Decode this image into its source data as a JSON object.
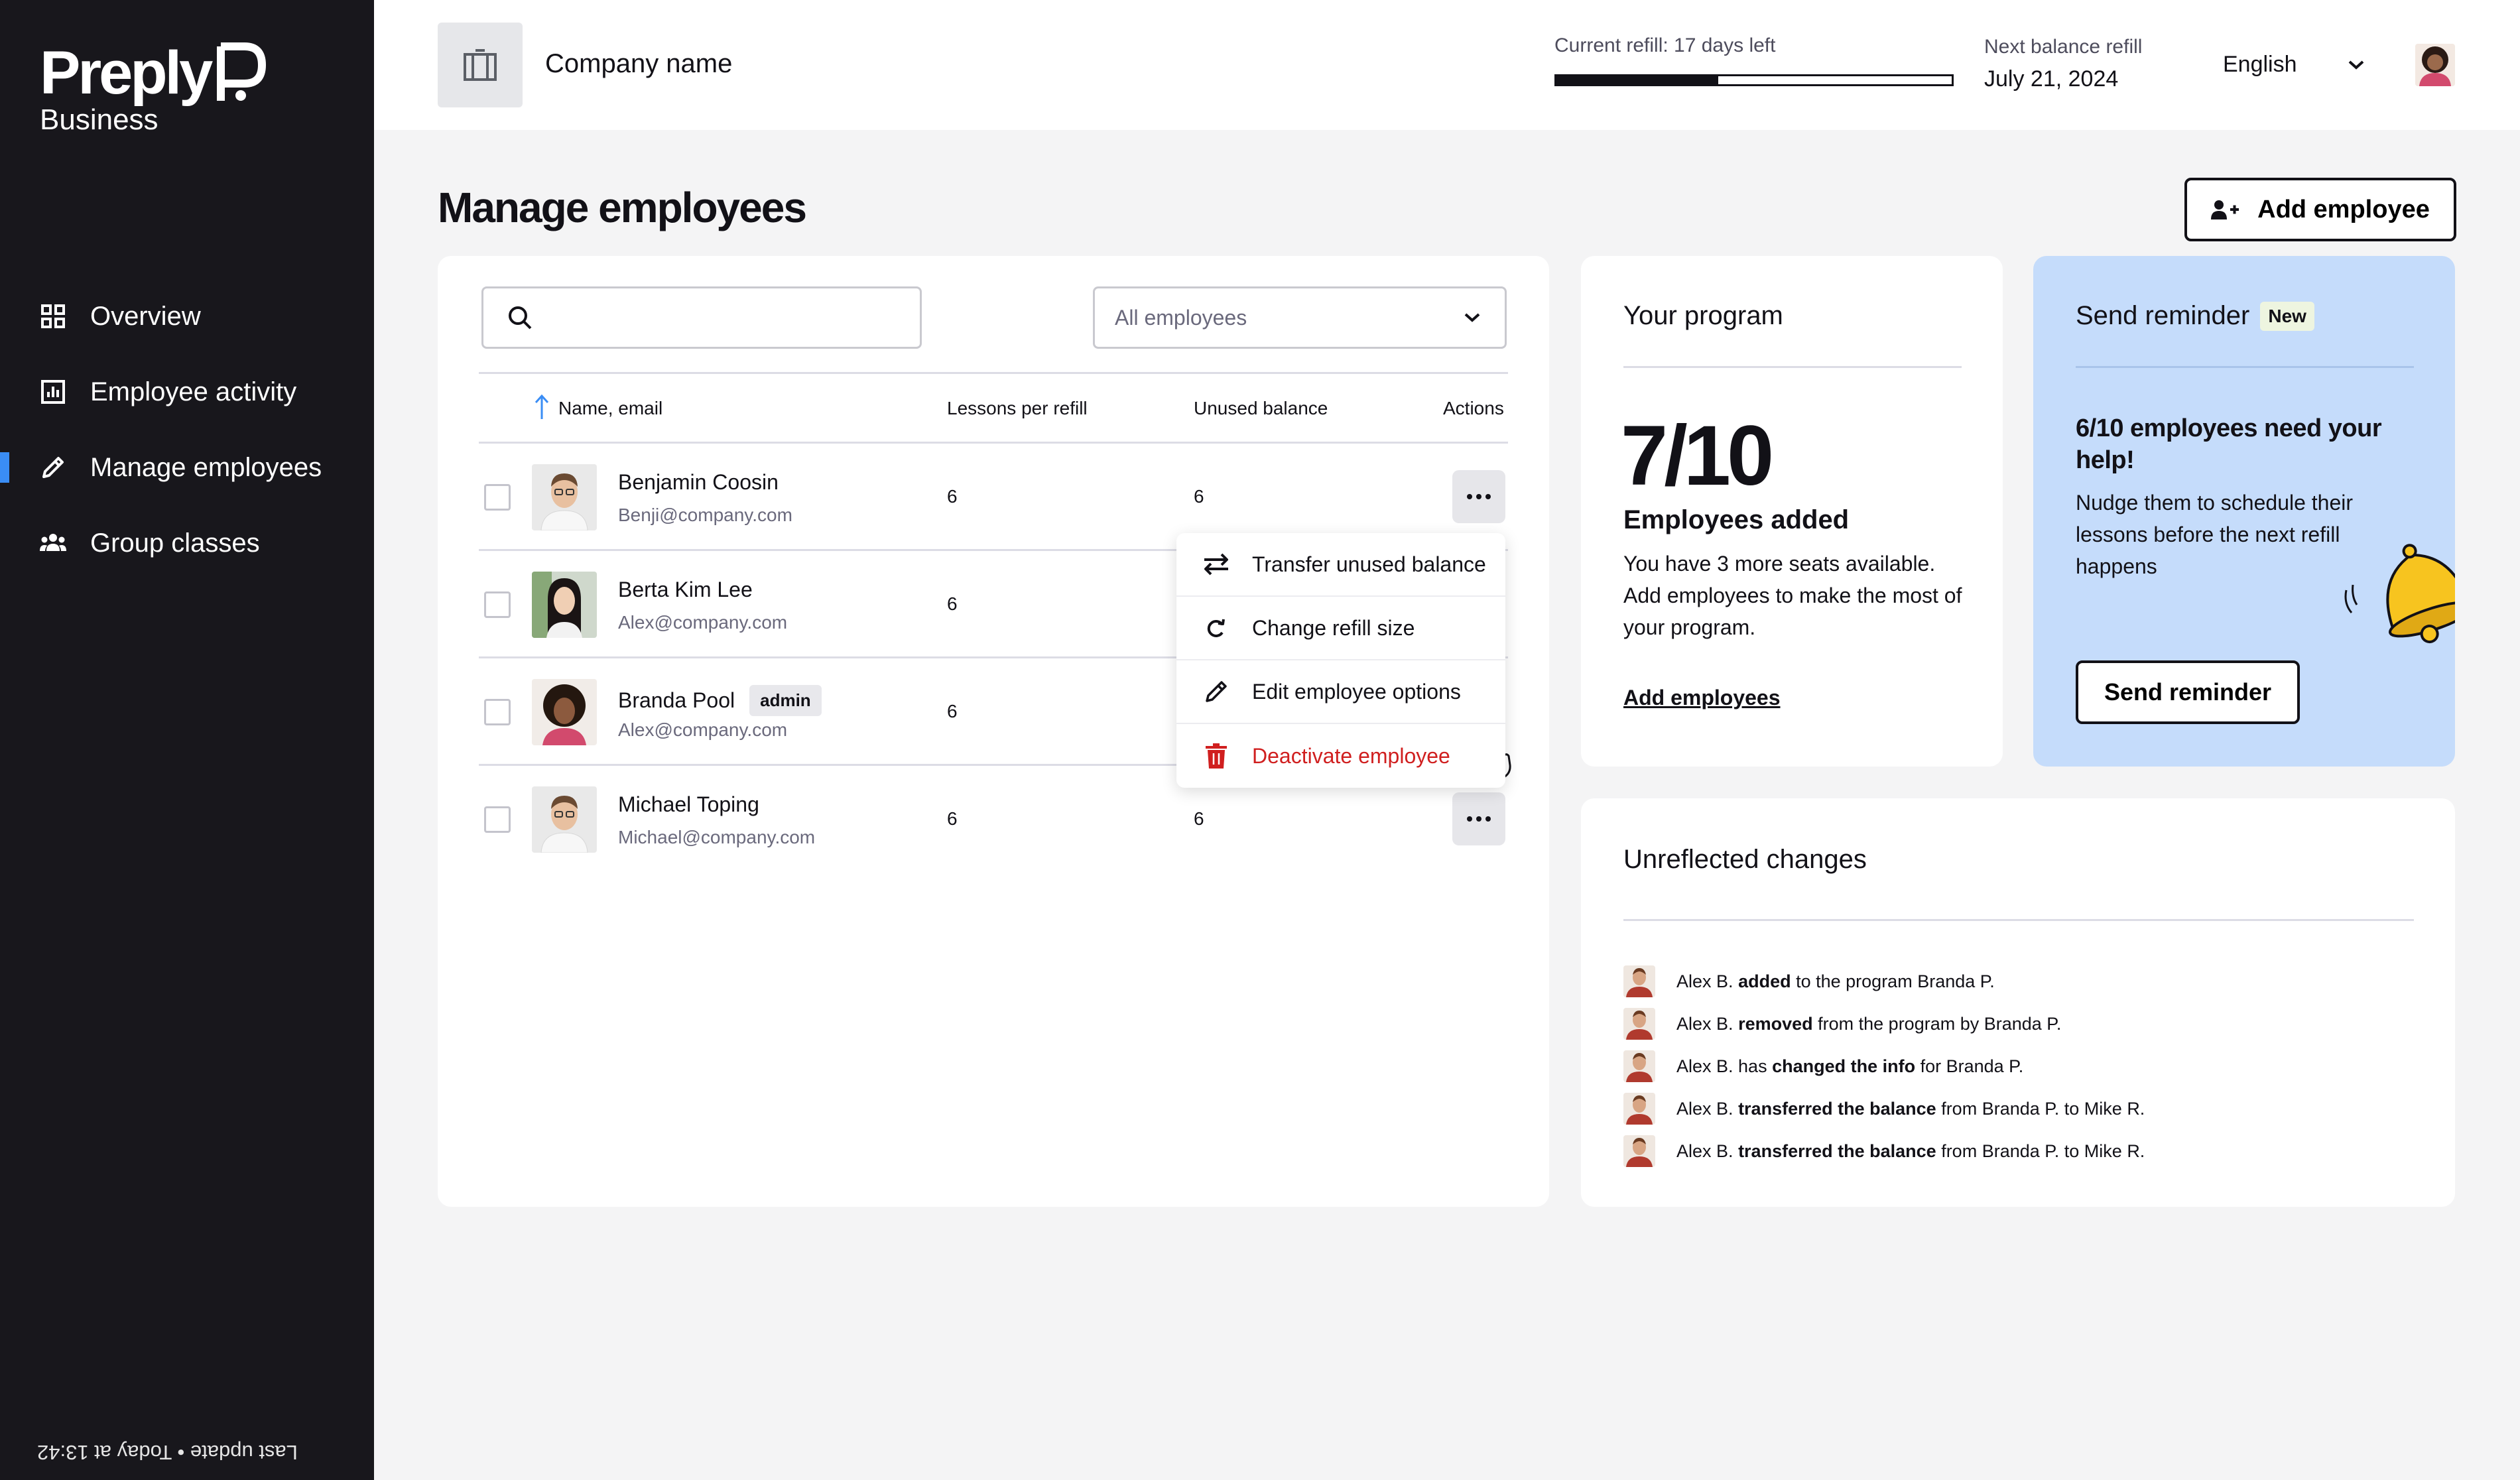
{
  "sidebar": {
    "logo_text": "Preply",
    "logo_sub": "Business",
    "items": [
      {
        "label": "Overview",
        "icon": "grid-icon"
      },
      {
        "label": "Employee activity",
        "icon": "bar-chart-icon"
      },
      {
        "label": "Manage employees",
        "icon": "pencil-icon",
        "active": true
      },
      {
        "label": "Group classes",
        "icon": "group-icon"
      }
    ],
    "last_update": "Last update • Today at 13:42"
  },
  "header": {
    "company_name": "Company name",
    "refill_label": "Current refill: 17 days left",
    "refill_progress": 0.41,
    "next_refill_label": "Next balance refill",
    "next_refill_date": "July 21, 2024",
    "language": "English"
  },
  "page": {
    "title": "Manage employees",
    "add_employee_label": "Add employee"
  },
  "table": {
    "search_placeholder": "",
    "filter_value": "All employees",
    "columns": [
      "Name, email",
      "Lessons per refill",
      "Unused balance",
      "Actions"
    ],
    "rows": [
      {
        "name": "Benjamin Coosin",
        "email": "Benji@company.com",
        "lessons": "6",
        "unused": "6",
        "admin": false
      },
      {
        "name": "Berta Kim Lee",
        "email": "Alex@company.com",
        "lessons": "6",
        "unused": "",
        "admin": false
      },
      {
        "name": "Branda Pool",
        "email": "Alex@company.com",
        "lessons": "6",
        "unused": "",
        "admin": true,
        "badge": "admin"
      },
      {
        "name": "Michael Toping",
        "email": "Michael@company.com",
        "lessons": "6",
        "unused": "6",
        "admin": false
      }
    ]
  },
  "menu": {
    "items": [
      {
        "label": "Transfer unused balance",
        "icon": "swap-arrows-icon"
      },
      {
        "label": "Change refill size",
        "icon": "redo-icon"
      },
      {
        "label": "Edit employee options",
        "icon": "pencil-icon"
      },
      {
        "label": "Deactivate employee",
        "icon": "trash-icon",
        "danger": true
      }
    ]
  },
  "program": {
    "heading": "Your program",
    "big_number": "7/10",
    "subtitle": "Employees added",
    "description": "You have 3 more seats available. Add employees to make the most of your program.",
    "link": "Add employees"
  },
  "reminder": {
    "heading": "Send reminder",
    "badge": "New",
    "title": "6/10 employees need your help!",
    "description": "Nudge them to schedule their lessons before the next refill happens",
    "button": "Send reminder"
  },
  "changes": {
    "heading": "Unreflected changes",
    "items": [
      {
        "pre": "Alex B.",
        "bold": "added",
        "post": "to the program  Branda P."
      },
      {
        "pre": "Alex B.",
        "bold": "removed",
        "post": "from the program by Branda P."
      },
      {
        "pre": "Alex B. has",
        "bold": "changed the info",
        "post": "for Branda P."
      },
      {
        "pre": "Alex B.",
        "bold": "transferred the balance",
        "post": "from Branda P. to Mike R."
      },
      {
        "pre": "Alex B.",
        "bold": "transferred the balance",
        "post": "from Branda P. to Mike R."
      }
    ]
  },
  "colors": {
    "sidebar_bg": "#18171c",
    "accent": "#3a8df5",
    "danger": "#d01f1f",
    "reminder_bg": "#c5dcfb",
    "bell": "#f5c518"
  }
}
